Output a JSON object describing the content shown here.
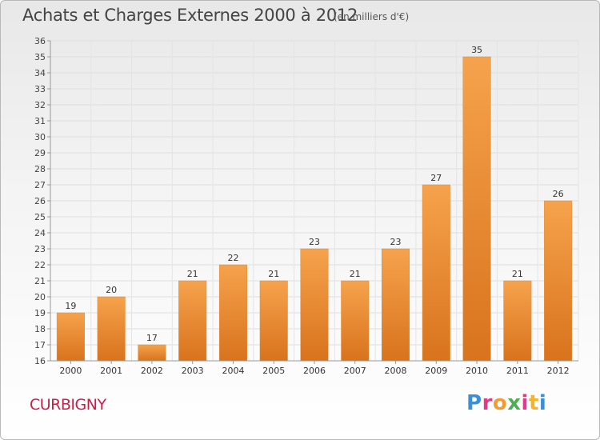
{
  "header": {
    "title": "Achats et Charges Externes 2000 à 2012",
    "subtitle": "(en milliers d'€)"
  },
  "footer": {
    "commune": "CURBIGNY",
    "logo_letters": [
      "P",
      "r",
      "o",
      "x",
      "i",
      "t",
      "i"
    ],
    "logo_colors": [
      "#3a8fd6",
      "#e23a8a",
      "#f29b2e",
      "#4caf50",
      "#e23a8a",
      "#f2b32e",
      "#3a8fd6"
    ]
  },
  "chart_data": {
    "type": "bar",
    "title": "Achats et Charges Externes 2000 à 2012",
    "subtitle": "(en milliers d'€)",
    "categories": [
      "2000",
      "2001",
      "2002",
      "2003",
      "2004",
      "2005",
      "2006",
      "2007",
      "2008",
      "2009",
      "2010",
      "2011",
      "2012"
    ],
    "values": [
      19,
      20,
      17,
      21,
      22,
      21,
      23,
      21,
      23,
      27,
      35,
      21,
      26
    ],
    "ylim": [
      16,
      36
    ],
    "yticks": [
      16,
      17,
      18,
      19,
      20,
      21,
      22,
      23,
      24,
      25,
      26,
      27,
      28,
      29,
      30,
      31,
      32,
      33,
      34,
      35,
      36
    ],
    "xlabel": "",
    "ylabel": "",
    "grid": true,
    "bar_color": "#f29a3f",
    "bar_color_dark": "#d9731d"
  }
}
